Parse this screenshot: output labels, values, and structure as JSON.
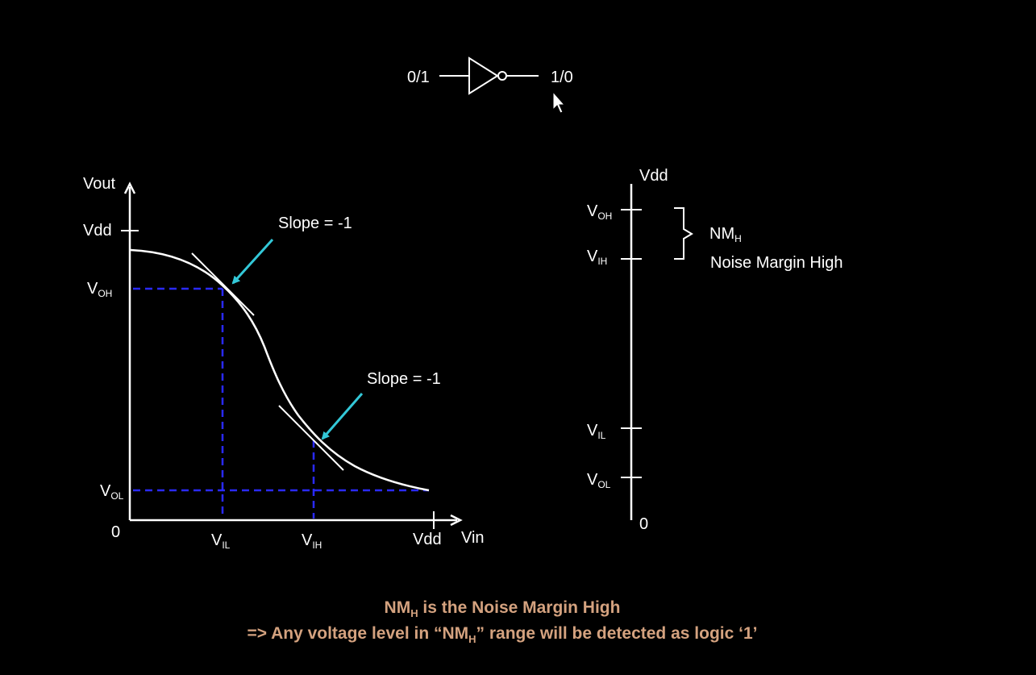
{
  "inverter": {
    "input_label": "0/1",
    "output_label": "1/0"
  },
  "vtc": {
    "y_axis_label": "Vout",
    "x_axis_label": "Vin",
    "vdd_y_label": "Vdd",
    "vdd_x_label": "Vdd",
    "origin_label": "0",
    "voh": {
      "main": "V",
      "sub": "OH"
    },
    "vol": {
      "main": "V",
      "sub": "OL"
    },
    "vil": {
      "main": "V",
      "sub": "IL"
    },
    "vih": {
      "main": "V",
      "sub": "IH"
    },
    "slope_upper": "Slope = -1",
    "slope_lower": "Slope = -1"
  },
  "levels": {
    "vdd_label": "Vdd",
    "zero_label": "0",
    "voh": {
      "main": "V",
      "sub": "OH"
    },
    "vih": {
      "main": "V",
      "sub": "IH"
    },
    "vil": {
      "main": "V",
      "sub": "IL"
    },
    "vol": {
      "main": "V",
      "sub": "OL"
    },
    "nmh": {
      "main": "NM",
      "sub": "H"
    },
    "nmh_description": "Noise Margin High"
  },
  "caption": {
    "line1": {
      "pre": "NM",
      "sub": "H",
      "post": " is the Noise Margin High"
    },
    "line2": {
      "pre": "=> Any voltage level in “NM",
      "sub": "H",
      "post": "” range will be detected as logic ‘1’"
    }
  },
  "colors": {
    "background": "#000000",
    "curve": "#ffffff",
    "dashed_guides": "#2a2aff",
    "arrows": "#33c8d8",
    "caption": "#d4a27f"
  }
}
